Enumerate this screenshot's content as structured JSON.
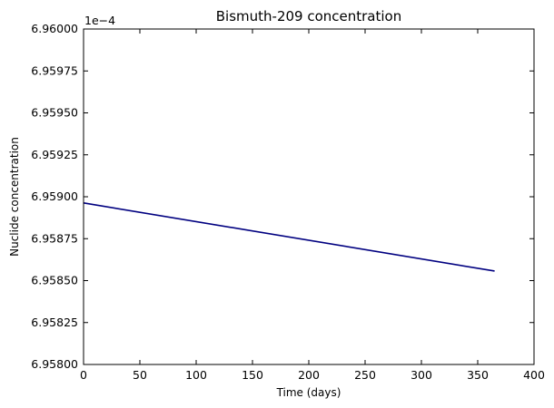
{
  "chart_data": {
    "type": "line",
    "title": "Bismuth-209 concentration",
    "xlabel": "Time (days)",
    "ylabel": "Nuclide concentration",
    "y_offset_label": "1e−4",
    "xlim": [
      0,
      400
    ],
    "ylim": [
      6.958,
      6.96
    ],
    "x_ticks": [
      0,
      50,
      100,
      150,
      200,
      250,
      300,
      350,
      400
    ],
    "y_ticks": [
      6.958,
      6.95825,
      6.9585,
      6.95875,
      6.959,
      6.95925,
      6.9595,
      6.95975,
      6.96
    ],
    "x_tick_labels": [
      "0",
      "50",
      "100",
      "150",
      "200",
      "250",
      "300",
      "350",
      "400"
    ],
    "y_tick_labels": [
      "6.95800",
      "6.95825",
      "6.95850",
      "6.95875",
      "6.95900",
      "6.95925",
      "6.95950",
      "6.95975",
      "6.96000"
    ],
    "grid": false,
    "series": [
      {
        "color": "#000080",
        "x": [
          0,
          365
        ],
        "y": [
          6.958963,
          6.958557
        ]
      }
    ]
  }
}
